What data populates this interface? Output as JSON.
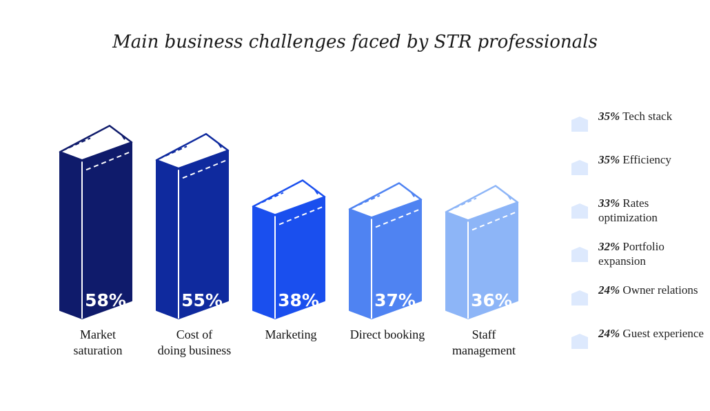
{
  "chart_data": {
    "type": "bar",
    "title": "Main business challenges faced by STR professionals",
    "categories": [
      "Market\nsaturation",
      "Cost of\ndoing business",
      "Marketing",
      "Direct booking",
      "Staff\nmanagement"
    ],
    "values": [
      58,
      55,
      38,
      37,
      36
    ],
    "value_labels": [
      "58%",
      "55%",
      "38%",
      "37%",
      "36%"
    ],
    "bar_colors": [
      "#0f1b6b",
      "#0f2a9e",
      "#1a4fee",
      "#4f83f2",
      "#8db5f7"
    ],
    "secondary": [
      {
        "pct": "35%",
        "label": "Tech stack"
      },
      {
        "pct": "35%",
        "label": "Efficiency"
      },
      {
        "pct": "33%",
        "label": "Rates optimization"
      },
      {
        "pct": "32%",
        "label": "Portfolio expansion"
      },
      {
        "pct": "24%",
        "label": "Owner relations"
      },
      {
        "pct": "24%",
        "label": "Guest experience"
      }
    ],
    "secondary_color": "#dde9fd"
  }
}
